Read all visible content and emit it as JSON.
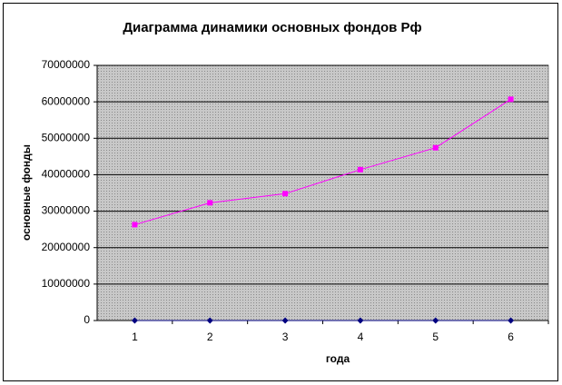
{
  "chart_data": {
    "type": "line",
    "title": "Диаграмма динамики основных фондов Рф",
    "x_label": "года",
    "y_label": "основные фонды",
    "categories": [
      1,
      2,
      3,
      4,
      5,
      6
    ],
    "series": [
      {
        "color": "#000080",
        "marker": "diamond",
        "values": [
          0,
          0,
          0,
          0,
          0,
          0
        ]
      },
      {
        "color": "#ff00ff",
        "marker": "square",
        "values": [
          26300000,
          32300000,
          34800000,
          41400000,
          47400000,
          60700000
        ]
      }
    ],
    "ylim": [
      0,
      70000000
    ],
    "yticks": [
      0,
      10000000,
      20000000,
      30000000,
      40000000,
      50000000,
      60000000,
      70000000
    ],
    "grid": true
  }
}
